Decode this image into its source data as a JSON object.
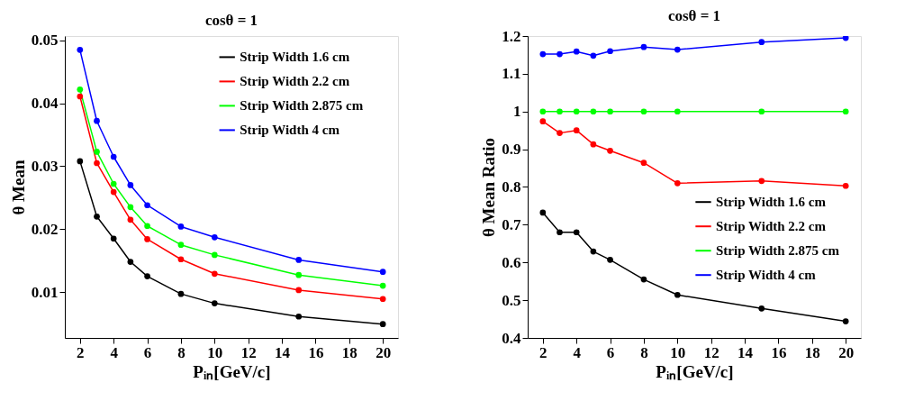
{
  "chart_data": [
    {
      "type": "line",
      "title": "cosθ = 1",
      "xlabel": "Pᵢₙ[GeV/c]",
      "ylabel": "θ Mean",
      "x": [
        2,
        3,
        4,
        5,
        6,
        8,
        10,
        15,
        20
      ],
      "series": [
        {
          "name": "Strip Width 1.6 cm",
          "color": "#000000",
          "values": [
            0.0308,
            0.022,
            0.0185,
            0.0148,
            0.0125,
            0.0097,
            0.0082,
            0.0061,
            0.0049
          ]
        },
        {
          "name": "Strip Width 2.2 cm",
          "color": "#ff0000",
          "values": [
            0.0411,
            0.0305,
            0.0259,
            0.0215,
            0.0184,
            0.0152,
            0.0129,
            0.0103,
            0.0089
          ]
        },
        {
          "name": "Strip Width 2.875 cm",
          "color": "#00ff00",
          "values": [
            0.0422,
            0.0323,
            0.0272,
            0.0235,
            0.0205,
            0.0175,
            0.0159,
            0.0127,
            0.011
          ]
        },
        {
          "name": "Strip Width 4 cm",
          "color": "#0000ff",
          "values": [
            0.0485,
            0.0372,
            0.0315,
            0.027,
            0.0238,
            0.0204,
            0.0187,
            0.0151,
            0.0132
          ]
        }
      ],
      "xlim": [
        1.1,
        20.9
      ],
      "xticks": [
        2,
        4,
        6,
        8,
        10,
        12,
        14,
        16,
        18,
        20
      ],
      "ylim": [
        0.0027,
        0.0507
      ],
      "yticks": [
        0.01,
        0.02,
        0.03,
        0.04,
        0.05
      ],
      "grid": false,
      "legend": "top right",
      "marker": "circle",
      "line_style": "solid"
    },
    {
      "type": "line",
      "title": "cosθ = 1",
      "xlabel": "Pᵢₙ[GeV/c]",
      "ylabel": "θ Mean Ratio",
      "x": [
        2,
        3,
        4,
        5,
        6,
        8,
        10,
        15,
        20
      ],
      "series": [
        {
          "name": "Strip Width 1.6 cm",
          "color": "#000000",
          "values": [
            0.732,
            0.68,
            0.68,
            0.629,
            0.607,
            0.555,
            0.514,
            0.478,
            0.444
          ]
        },
        {
          "name": "Strip Width 2.2 cm",
          "color": "#ff0000",
          "values": [
            0.974,
            0.943,
            0.95,
            0.913,
            0.896,
            0.864,
            0.81,
            0.816,
            0.803
          ]
        },
        {
          "name": "Strip Width 2.875 cm",
          "color": "#00ff00",
          "values": [
            1.0,
            1.0,
            1.0,
            1.0,
            1.0,
            1.0,
            1.0,
            1.0,
            1.0
          ]
        },
        {
          "name": "Strip Width 4 cm",
          "color": "#0000ff",
          "values": [
            1.152,
            1.152,
            1.159,
            1.148,
            1.16,
            1.171,
            1.164,
            1.184,
            1.195
          ]
        }
      ],
      "xlim": [
        1.1,
        20.9
      ],
      "xticks": [
        2,
        4,
        6,
        8,
        10,
        12,
        14,
        16,
        18,
        20
      ],
      "ylim": [
        0.4,
        1.2
      ],
      "yticks": [
        0.4,
        0.5,
        0.6,
        0.7,
        0.8,
        0.9,
        1,
        1.1,
        1.2
      ],
      "grid": false,
      "legend": "bottom right",
      "marker": "circle",
      "line_style": "solid"
    }
  ]
}
